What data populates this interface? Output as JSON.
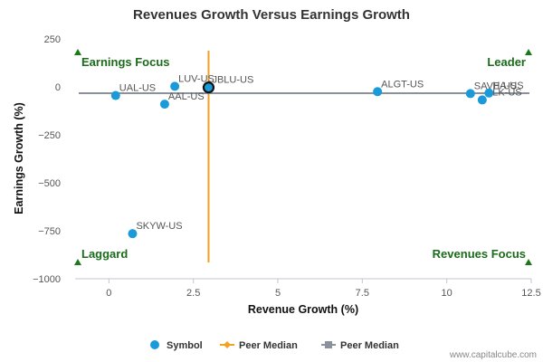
{
  "chart_data": {
    "type": "scatter",
    "title": "Revenues Growth Versus Earnings Growth",
    "xlabel": "Revenue Growth (%)",
    "ylabel": "Earnings Growth (%)",
    "xlim": [
      -1,
      12.5
    ],
    "ylim": [
      -1000,
      250
    ],
    "xticks": [
      0,
      2.5,
      5,
      7.5,
      10,
      12.5
    ],
    "yticks": [
      250,
      0,
      -250,
      -500,
      -750,
      -1000
    ],
    "xtick_labels": [
      "0",
      "2.5",
      "5",
      "7.5",
      "10",
      "12.5"
    ],
    "ytick_labels": [
      "250",
      "0",
      "−250",
      "−500",
      "−750",
      "−1000"
    ],
    "points": [
      {
        "label": "UAL-US",
        "x": 0.2,
        "y": -45
      },
      {
        "label": "LUV-US",
        "x": 1.95,
        "y": 3
      },
      {
        "label": "AAL-US",
        "x": 1.65,
        "y": -90
      },
      {
        "label": "JBLU-US",
        "x": 2.95,
        "y": -3,
        "highlight": true
      },
      {
        "label": "ALGT-US",
        "x": 7.95,
        "y": -25
      },
      {
        "label": "SAVE-US",
        "x": 10.7,
        "y": -35
      },
      {
        "label": "ALK-US",
        "x": 11.05,
        "y": -68
      },
      {
        "label": "HA-US",
        "x": 11.25,
        "y": -32
      },
      {
        "label": "SKYW-US",
        "x": 0.7,
        "y": -765
      }
    ],
    "peer_median_x": 2.95,
    "peer_median_y": -33,
    "quadrants": {
      "top_left": "Earnings Focus",
      "top_right": "Leader",
      "bottom_left": "Laggard",
      "bottom_right": "Revenues Focus"
    },
    "legend": [
      {
        "name": "Symbol",
        "marker": "circle",
        "color": "#1b9ad9"
      },
      {
        "name": "Peer Median",
        "marker": "diamond-line",
        "color": "#f5a020"
      },
      {
        "name": "Peer Median",
        "marker": "square-line",
        "color": "#8a909c"
      }
    ],
    "grid": false,
    "legend_position": "bottom"
  },
  "colors": {
    "point": "#1b9ad9",
    "median_vertical": "#f5a020",
    "median_horizontal": "#8a909c",
    "quadrant_text": "#1a6b1a",
    "quadrant_arrow": "#1a7a1a"
  },
  "credit": "www.capitalcube.com"
}
